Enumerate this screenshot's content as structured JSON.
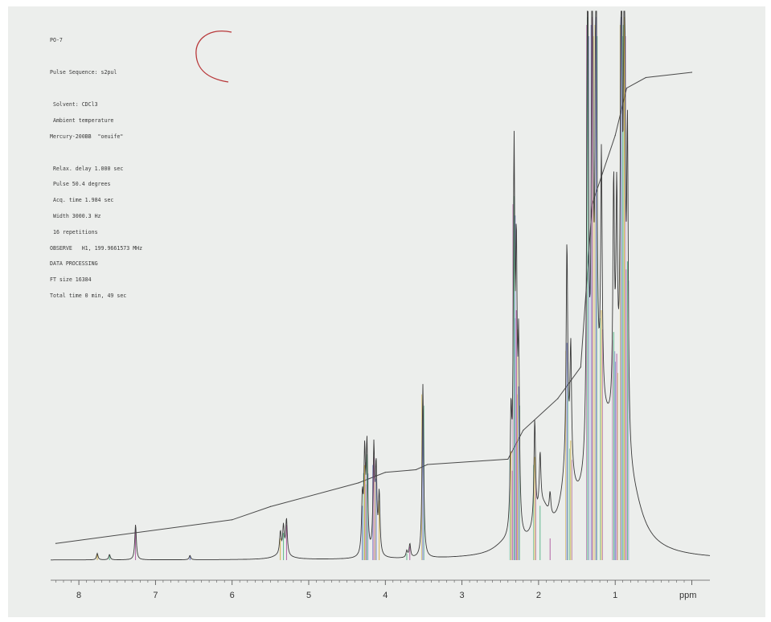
{
  "parameters": {
    "sample_id": "PO-7",
    "pulse_sequence": "Pulse Sequence: s2pul",
    "solvent": " Solvent: CDCl3",
    "temperature": " Ambient temperature",
    "instrument": "Mercury-200BB  \"oeuife\"",
    "relax_delay": " Relax. delay 1.000 sec",
    "pulse": " Pulse 50.4 degrees",
    "acq_time": " Acq. time 1.984 sec",
    "width": " Width 3000.3 Hz",
    "repetitions": " 16 repetitions",
    "observe": "OBSERVE   H1, 199.9661573 MHz",
    "data_processing": "DATA PROCESSING",
    "ft_size": "FT size 16384",
    "total_time": "Total time 0 min, 49 sec"
  },
  "colors": {
    "paper": "#eceeec",
    "trace": "#3a3a3a",
    "integral": "#4a4a4a",
    "peak_overlay": [
      "#c8a020",
      "#35a870",
      "#a03a90",
      "#4a58b8"
    ],
    "pen_mark": "#b8383a"
  },
  "chart_data": {
    "type": "line",
    "title": "",
    "xlabel": "ppm",
    "ylabel": "",
    "x_reversed": true,
    "xlim": [
      8.3,
      -0.05
    ],
    "ylim": [
      0,
      100
    ],
    "xticks": [
      "8",
      "7",
      "6",
      "5",
      "4",
      "3",
      "2",
      "1"
    ],
    "grid": false,
    "series": [
      {
        "role": "spectrum",
        "peaks": [
          {
            "ppm": 7.76,
            "height": 1.2
          },
          {
            "ppm": 7.6,
            "height": 1.0
          },
          {
            "ppm": 7.26,
            "height": 6.5
          },
          {
            "ppm": 6.55,
            "height": 0.8
          },
          {
            "ppm": 5.37,
            "height": 4.0
          },
          {
            "ppm": 5.33,
            "height": 5.0
          },
          {
            "ppm": 5.29,
            "height": 6.5
          },
          {
            "ppm": 4.3,
            "height": 10.0
          },
          {
            "ppm": 4.27,
            "height": 17.5
          },
          {
            "ppm": 4.24,
            "height": 19.5
          },
          {
            "ppm": 4.15,
            "height": 19.0
          },
          {
            "ppm": 4.12,
            "height": 15.0
          },
          {
            "ppm": 4.08,
            "height": 11.0
          },
          {
            "ppm": 3.72,
            "height": 1.2
          },
          {
            "ppm": 3.68,
            "height": 2.5
          },
          {
            "ppm": 3.51,
            "height": 32.0
          },
          {
            "ppm": 2.36,
            "height": 20.0
          },
          {
            "ppm": 2.32,
            "height": 67.0
          },
          {
            "ppm": 2.29,
            "height": 46.0
          },
          {
            "ppm": 2.26,
            "height": 32.0
          },
          {
            "ppm": 2.05,
            "height": 19.0
          },
          {
            "ppm": 1.98,
            "height": 10.0
          },
          {
            "ppm": 1.85,
            "height": 4.0
          },
          {
            "ppm": 1.63,
            "height": 40.0
          },
          {
            "ppm": 1.58,
            "height": 22.0
          },
          {
            "ppm": 1.36,
            "height": 100.0
          },
          {
            "ppm": 1.3,
            "height": 100.0
          },
          {
            "ppm": 1.25,
            "height": 100.0
          },
          {
            "ppm": 1.18,
            "height": 46.0
          },
          {
            "ppm": 1.02,
            "height": 42.0
          },
          {
            "ppm": 0.98,
            "height": 38.0
          },
          {
            "ppm": 0.92,
            "height": 100.0
          },
          {
            "ppm": 0.88,
            "height": 100.0
          },
          {
            "ppm": 0.84,
            "height": 55.0
          }
        ]
      },
      {
        "role": "integral",
        "points": [
          {
            "ppm": 8.3,
            "value": 10.5
          },
          {
            "ppm": 6.0,
            "value": 15.0
          },
          {
            "ppm": 5.5,
            "value": 17.5
          },
          {
            "ppm": 4.35,
            "value": 22.0
          },
          {
            "ppm": 4.0,
            "value": 24.0
          },
          {
            "ppm": 3.6,
            "value": 24.5
          },
          {
            "ppm": 3.45,
            "value": 25.5
          },
          {
            "ppm": 2.4,
            "value": 26.5
          },
          {
            "ppm": 2.2,
            "value": 32.0
          },
          {
            "ppm": 1.75,
            "value": 38.0
          },
          {
            "ppm": 1.45,
            "value": 44.0
          },
          {
            "ppm": 1.3,
            "value": 75.0
          },
          {
            "ppm": 1.0,
            "value": 88.0
          },
          {
            "ppm": 0.85,
            "value": 97.0
          },
          {
            "ppm": 0.6,
            "value": 99.0
          },
          {
            "ppm": 0.0,
            "value": 100.0
          }
        ]
      }
    ]
  }
}
